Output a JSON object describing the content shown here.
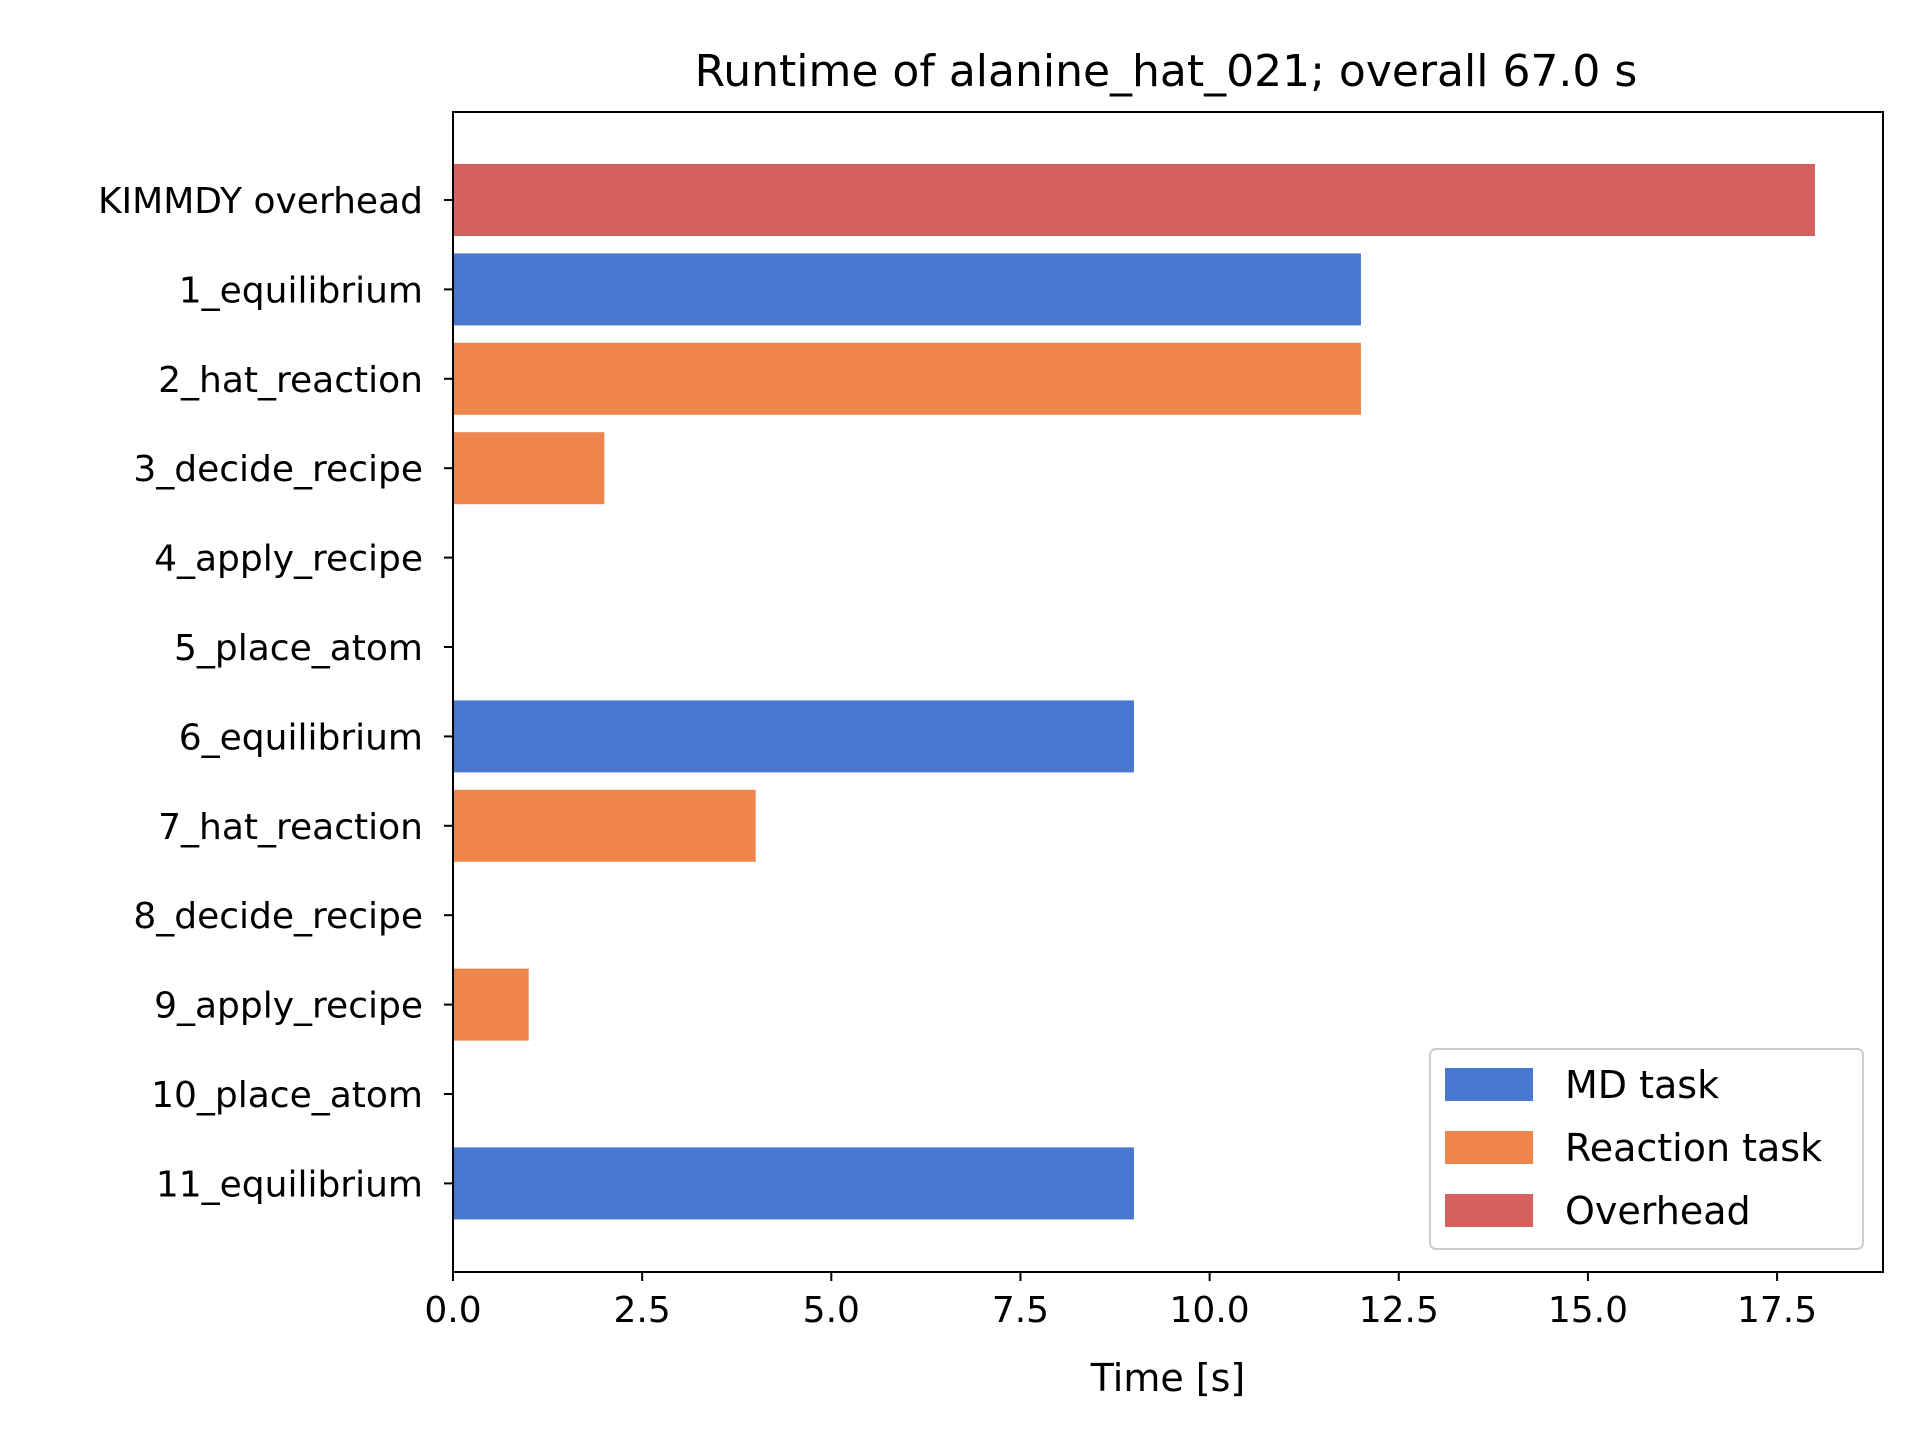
{
  "chart_data": {
    "type": "bar",
    "orientation": "horizontal",
    "title": "Runtime of alanine_hat_021; overall 67.0 s",
    "xlabel": "Time [s]",
    "ylabel": "",
    "xlim": [
      0,
      18.9
    ],
    "xticks": [
      "0.0",
      "2.5",
      "5.0",
      "7.5",
      "10.0",
      "12.5",
      "15.0",
      "17.5"
    ],
    "grid": false,
    "legend_position": "lower-right",
    "categories": [
      "KIMMDY overhead",
      "1_equilibrium",
      "2_hat_reaction",
      "3_decide_recipe",
      "4_apply_recipe",
      "5_place_atom",
      "6_equilibrium",
      "7_hat_reaction",
      "8_decide_recipe",
      "9_apply_recipe",
      "10_place_atom",
      "11_equilibrium"
    ],
    "values": [
      18,
      12,
      12,
      2,
      0,
      0,
      9,
      4,
      0,
      1,
      0,
      9
    ],
    "bar_types": [
      "Overhead",
      "MD task",
      "Reaction task",
      "Reaction task",
      "Reaction task",
      "Reaction task",
      "MD task",
      "Reaction task",
      "Reaction task",
      "Reaction task",
      "Reaction task",
      "MD task"
    ],
    "legend": [
      {
        "label": "MD task",
        "color": "#4878cf"
      },
      {
        "label": "Reaction task",
        "color": "#ee854a"
      },
      {
        "label": "Overhead",
        "color": "#d65f5f"
      }
    ]
  }
}
